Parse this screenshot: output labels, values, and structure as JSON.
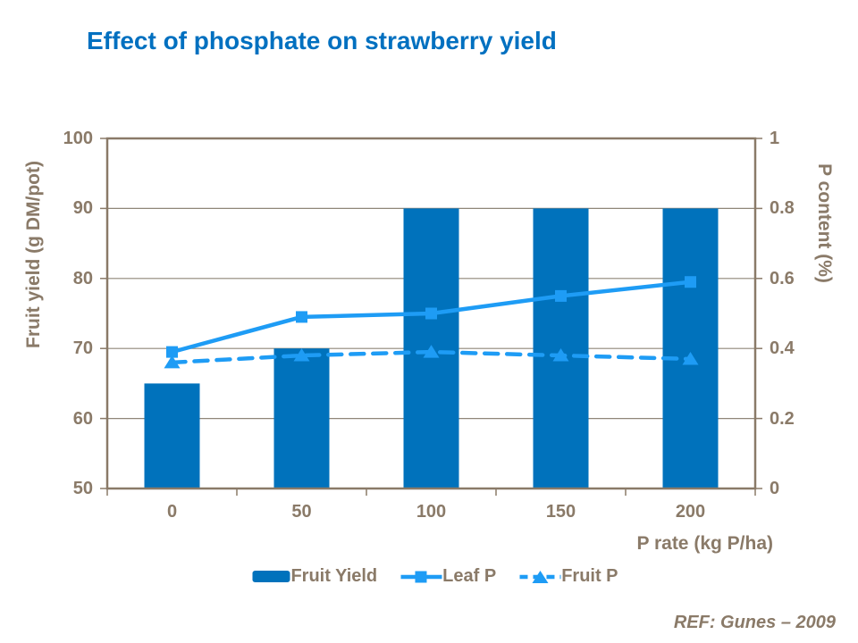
{
  "title": "Effect of phosphate on strawberry yield",
  "reference": "REF: Gunes – 2009",
  "colors": {
    "title": "#0070C0",
    "bar": "#0072BC",
    "line": "#1E9CF5",
    "axis_text": "#8A7A68",
    "axis_line": "#8A7A68",
    "gridline": "#8F8678"
  },
  "chart_data": {
    "type": "bar",
    "title": "Effect of phosphate on strawberry yield",
    "categories": [
      0,
      50,
      100,
      150,
      200
    ],
    "series": [
      {
        "name": "Fruit Yield",
        "type": "bar",
        "axis": "left",
        "marker": "none",
        "line_style": "none",
        "values": [
          65,
          70,
          90,
          90,
          90
        ]
      },
      {
        "name": "Leaf P",
        "type": "line",
        "axis": "right",
        "marker": "square",
        "line_style": "solid",
        "values": [
          0.39,
          0.49,
          0.5,
          0.55,
          0.59
        ]
      },
      {
        "name": "Fruit P",
        "type": "line",
        "axis": "right",
        "marker": "triangle",
        "line_style": "dashed",
        "values": [
          0.36,
          0.38,
          0.39,
          0.38,
          0.37
        ]
      }
    ],
    "xlabel": "P rate (kg P/ha)",
    "ylabel_left": "Fruit yield (g DM/pot)",
    "ylabel_right": "P content (%)",
    "ylim_left": [
      50,
      100
    ],
    "ylim_right": [
      0,
      1
    ],
    "yticks_left": [
      100,
      90,
      80,
      70,
      60,
      50
    ],
    "yticks_right": [
      1,
      0.8,
      0.6,
      0.4,
      0.2,
      0
    ],
    "grid": "horizontal",
    "legend_position": "bottom"
  }
}
